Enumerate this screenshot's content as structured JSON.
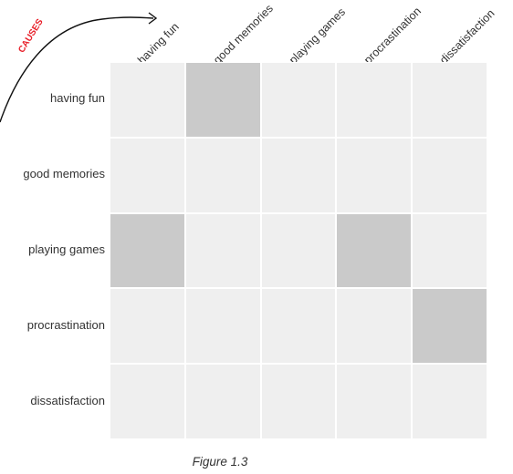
{
  "causes_label": "CAUSES",
  "columns": [
    "having fun",
    "good memories",
    "playing games",
    "procrastination",
    "dissatisfaction"
  ],
  "rows": [
    "having fun",
    "good memories",
    "playing games",
    "procrastination",
    "dissatisfaction"
  ],
  "matrix": [
    [
      0,
      1,
      0,
      0,
      0
    ],
    [
      0,
      0,
      0,
      0,
      0
    ],
    [
      1,
      0,
      0,
      1,
      0
    ],
    [
      0,
      0,
      0,
      0,
      1
    ],
    [
      0,
      0,
      0,
      0,
      0
    ]
  ],
  "caption": "Figure 1.3",
  "colors": {
    "cell_empty": "#efefef",
    "cell_filled": "#cacaca",
    "causes": "#e8202a",
    "arrow": "#111111",
    "text": "#333333"
  }
}
